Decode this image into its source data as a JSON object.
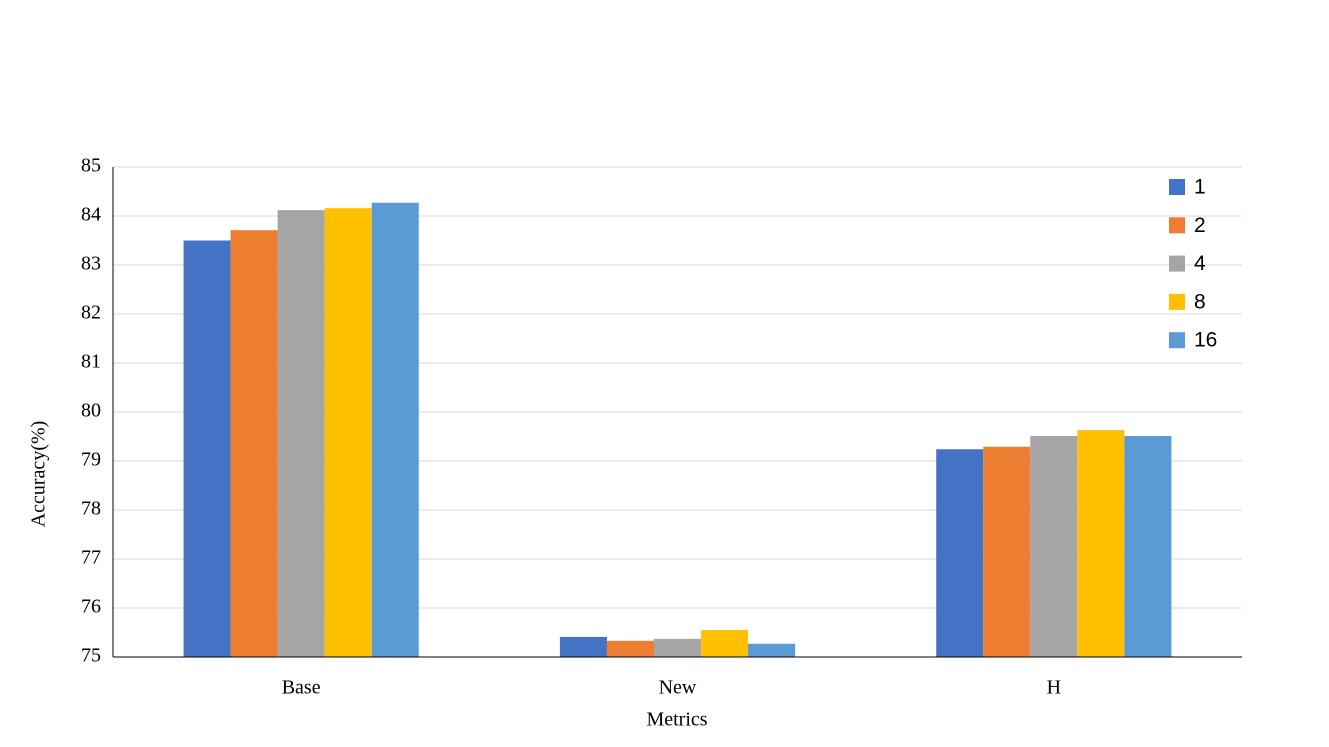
{
  "chart_data": {
    "type": "bar",
    "x_label": "Metrics",
    "y_label": "Accuracy(%)",
    "categories": [
      "Base",
      "New",
      "H"
    ],
    "series": [
      {
        "name": "1",
        "color": "#4472c4",
        "values": [
          83.5,
          75.41,
          79.24
        ]
      },
      {
        "name": "2",
        "color": "#ed7d31",
        "values": [
          83.71,
          75.33,
          79.29
        ]
      },
      {
        "name": "4",
        "color": "#a5a5a5",
        "values": [
          84.12,
          75.37,
          79.51
        ]
      },
      {
        "name": "8",
        "color": "#ffc000",
        "values": [
          84.16,
          75.55,
          79.63
        ]
      },
      {
        "name": "16",
        "color": "#5b9bd5",
        "values": [
          84.27,
          75.27,
          79.51
        ]
      }
    ],
    "ylim": [
      75,
      85
    ],
    "yticks": [
      75,
      76,
      77,
      78,
      79,
      80,
      81,
      82,
      83,
      84,
      85
    ],
    "grid": true,
    "legend": "top-right"
  }
}
